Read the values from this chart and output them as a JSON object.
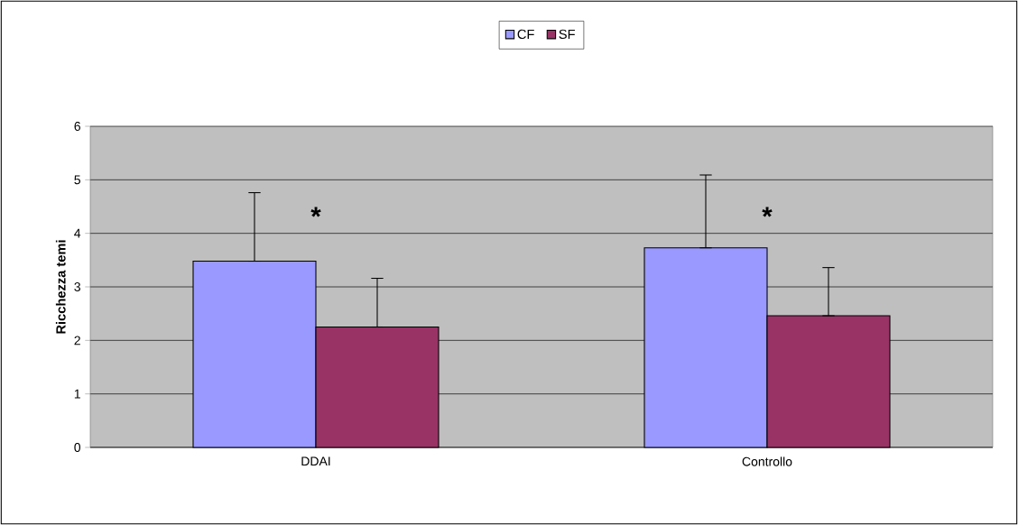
{
  "chart_data": {
    "type": "bar",
    "ylabel": "Ricchezza temi",
    "categories": [
      "DDAI",
      "Controllo"
    ],
    "series": [
      {
        "name": "CF",
        "color": "#9999ff",
        "values": [
          3.48,
          3.73
        ],
        "errors": [
          [
            3.48,
            4.76
          ],
          [
            3.73,
            5.09
          ]
        ]
      },
      {
        "name": "SF",
        "color": "#993366",
        "values": [
          2.25,
          2.46
        ],
        "errors": [
          [
            2.25,
            3.16
          ],
          [
            2.46,
            3.36
          ]
        ]
      }
    ],
    "ylim": [
      0,
      6
    ],
    "yticks": [
      0,
      1,
      2,
      3,
      4,
      5,
      6
    ],
    "grid": "y",
    "legend": "top",
    "annotations": [
      "*",
      "*"
    ]
  }
}
